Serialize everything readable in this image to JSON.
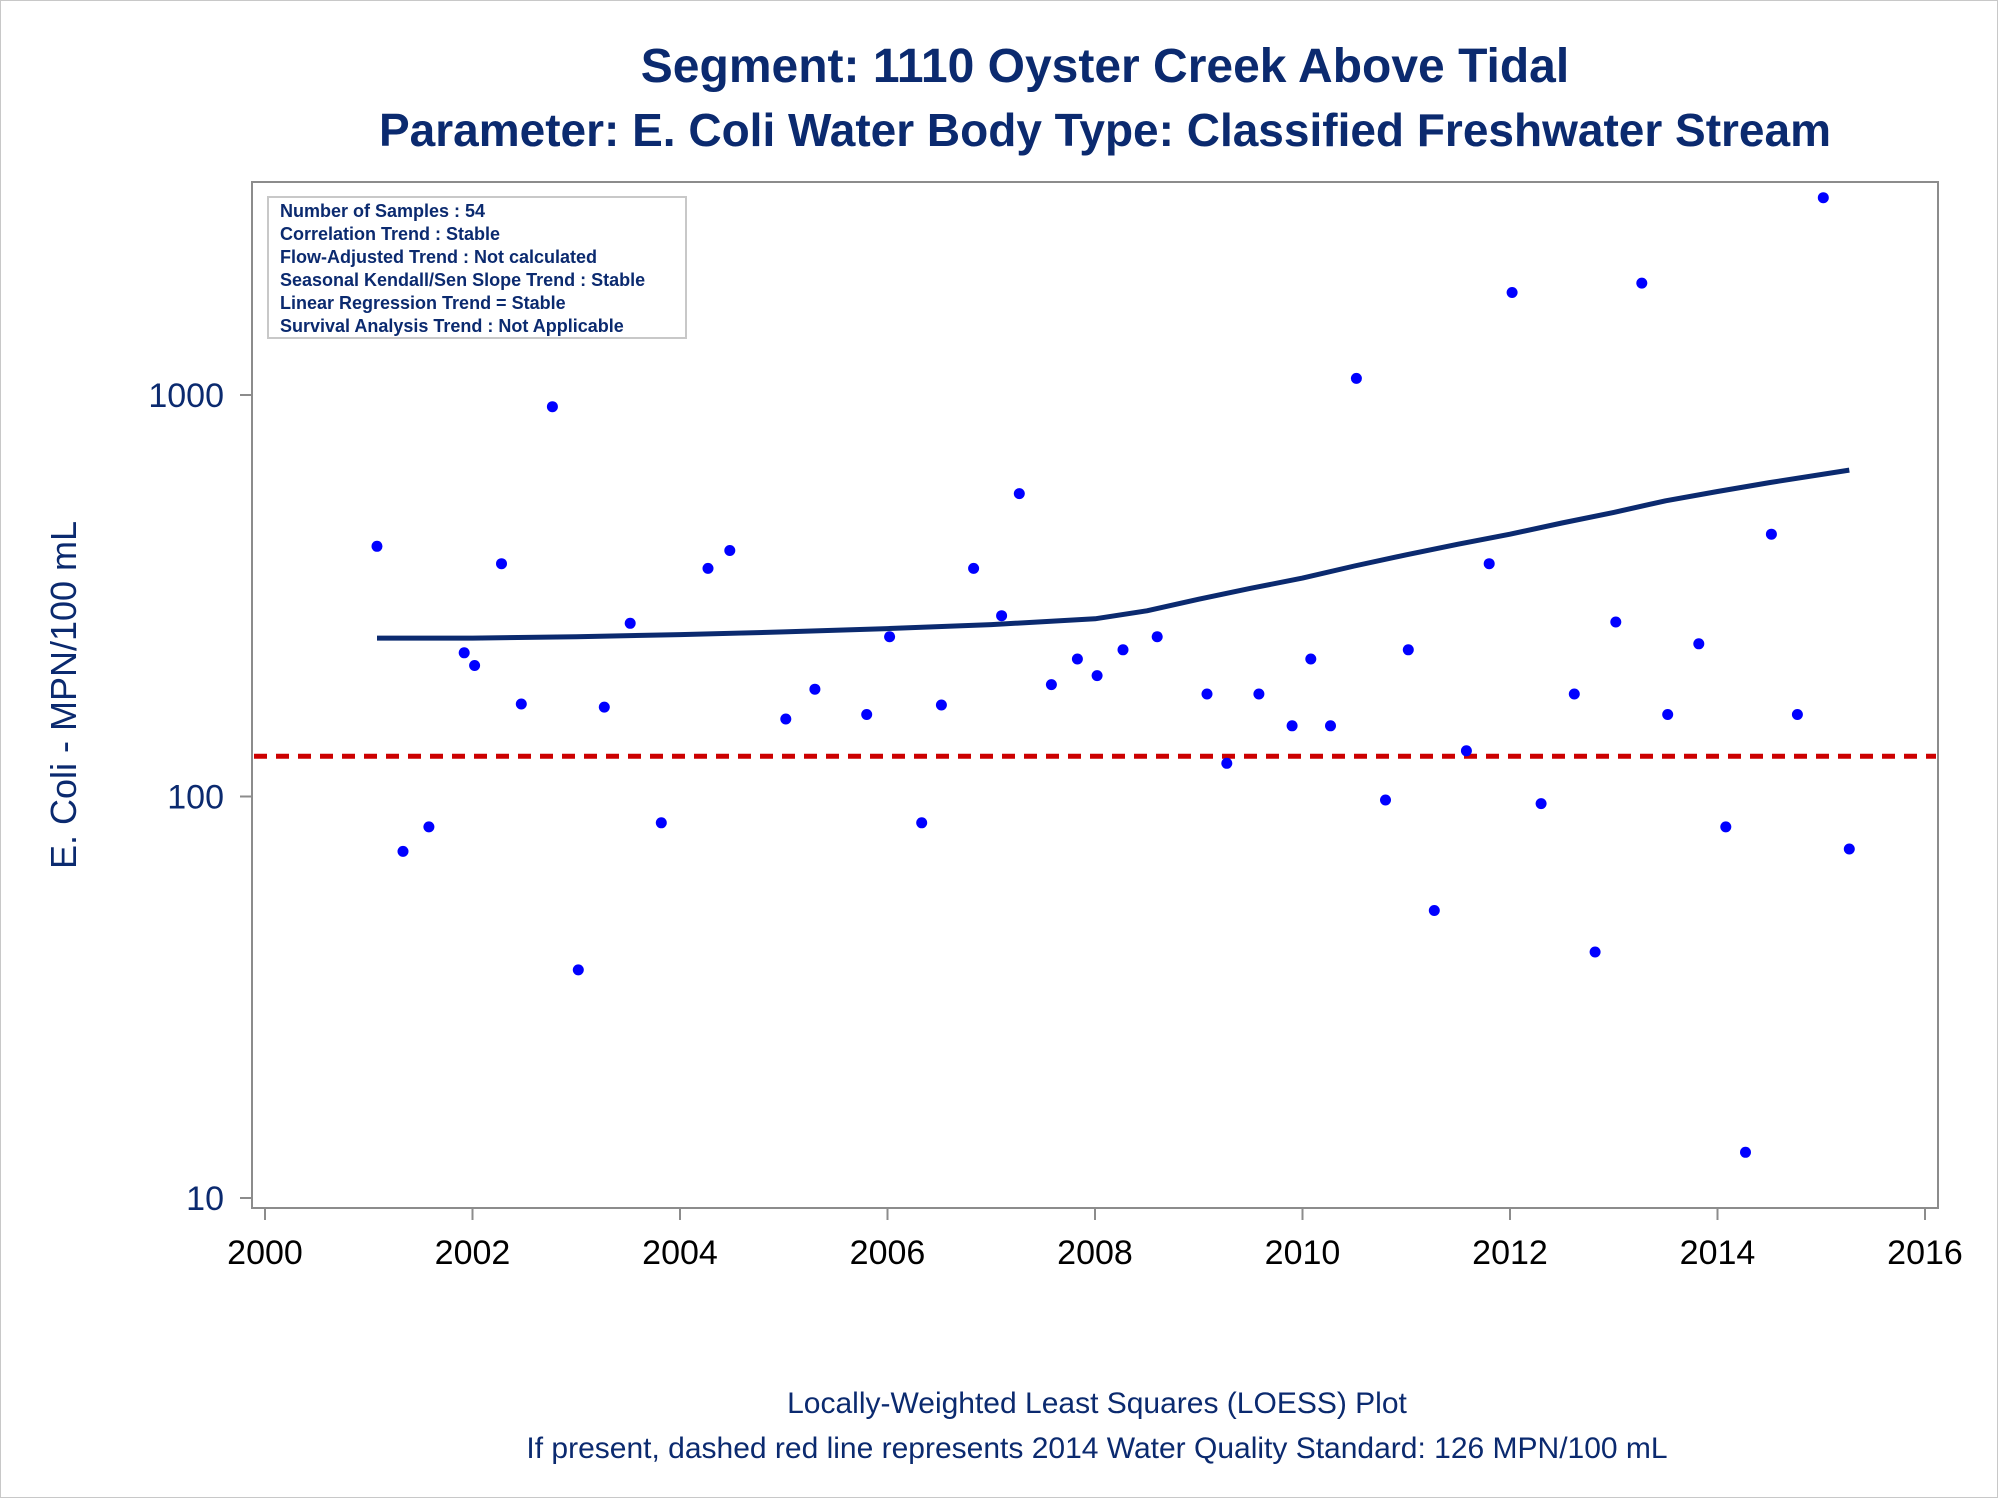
{
  "title": "Segment: 1110  Oyster Creek Above Tidal",
  "subtitle": "Parameter: E. Coli   Water Body Type: Classified Freshwater Stream",
  "stats_box": [
    "Number of Samples : 54",
    "Correlation Trend : Stable",
    "Flow-Adjusted Trend : Not calculated",
    "Seasonal Kendall/Sen Slope Trend : Stable",
    "Linear Regression Trend = Stable",
    "Survival Analysis Trend : Not Applicable"
  ],
  "footnotes": [
    "Locally-Weighted Least Squares (LOESS) Plot",
    "If present, dashed red line represents 2014 Water Quality Standard: 126 MPN/100 mL"
  ],
  "colors": {
    "text": "#0b2a6f",
    "points": "#0000ff",
    "loess": "#0b2a6f",
    "standard": "#cc0000",
    "axis": "#8c8c8c"
  },
  "chart_data": {
    "type": "scatter",
    "ylabel": "E. Coli - MPN/100 mL",
    "xlabel": "",
    "y_scale": "log",
    "xlim": [
      2000,
      2016
    ],
    "ylim": [
      10,
      3000
    ],
    "x_ticks": [
      "2000",
      "2002",
      "2004",
      "2006",
      "2008",
      "2010",
      "2012",
      "2014",
      "2016"
    ],
    "y_ticks": [
      "10",
      "100",
      "1000"
    ],
    "grid": false,
    "standard_line": {
      "value": 126,
      "style": "dashed"
    },
    "points": [
      {
        "x": 2001.08,
        "y": 420
      },
      {
        "x": 2001.33,
        "y": 73
      },
      {
        "x": 2001.58,
        "y": 84
      },
      {
        "x": 2001.92,
        "y": 228
      },
      {
        "x": 2002.02,
        "y": 212
      },
      {
        "x": 2002.28,
        "y": 380
      },
      {
        "x": 2002.47,
        "y": 170
      },
      {
        "x": 2002.77,
        "y": 935
      },
      {
        "x": 2003.02,
        "y": 37
      },
      {
        "x": 2003.27,
        "y": 167
      },
      {
        "x": 2003.52,
        "y": 270
      },
      {
        "x": 2003.82,
        "y": 86
      },
      {
        "x": 2004.27,
        "y": 370
      },
      {
        "x": 2004.48,
        "y": 410
      },
      {
        "x": 2005.02,
        "y": 156
      },
      {
        "x": 2005.3,
        "y": 185
      },
      {
        "x": 2005.8,
        "y": 160
      },
      {
        "x": 2006.02,
        "y": 250
      },
      {
        "x": 2006.33,
        "y": 86
      },
      {
        "x": 2006.52,
        "y": 169
      },
      {
        "x": 2006.83,
        "y": 370
      },
      {
        "x": 2007.1,
        "y": 282
      },
      {
        "x": 2007.27,
        "y": 568
      },
      {
        "x": 2007.58,
        "y": 190
      },
      {
        "x": 2007.83,
        "y": 220
      },
      {
        "x": 2008.02,
        "y": 200
      },
      {
        "x": 2008.27,
        "y": 232
      },
      {
        "x": 2008.6,
        "y": 250
      },
      {
        "x": 2009.08,
        "y": 180
      },
      {
        "x": 2009.27,
        "y": 121
      },
      {
        "x": 2009.58,
        "y": 180
      },
      {
        "x": 2009.9,
        "y": 150
      },
      {
        "x": 2010.08,
        "y": 220
      },
      {
        "x": 2010.27,
        "y": 150
      },
      {
        "x": 2010.52,
        "y": 1100
      },
      {
        "x": 2010.8,
        "y": 98
      },
      {
        "x": 2011.02,
        "y": 232
      },
      {
        "x": 2011.27,
        "y": 52
      },
      {
        "x": 2011.58,
        "y": 130
      },
      {
        "x": 2011.8,
        "y": 380
      },
      {
        "x": 2012.02,
        "y": 1800
      },
      {
        "x": 2012.3,
        "y": 96
      },
      {
        "x": 2012.62,
        "y": 180
      },
      {
        "x": 2012.82,
        "y": 41
      },
      {
        "x": 2013.02,
        "y": 272
      },
      {
        "x": 2013.27,
        "y": 1900
      },
      {
        "x": 2013.52,
        "y": 160
      },
      {
        "x": 2013.82,
        "y": 240
      },
      {
        "x": 2014.08,
        "y": 84
      },
      {
        "x": 2014.27,
        "y": 13
      },
      {
        "x": 2014.52,
        "y": 450
      },
      {
        "x": 2014.77,
        "y": 160
      },
      {
        "x": 2015.02,
        "y": 3100
      },
      {
        "x": 2015.27,
        "y": 74
      }
    ],
    "loess": [
      {
        "x": 2001.08,
        "y": 248
      },
      {
        "x": 2002.0,
        "y": 248
      },
      {
        "x": 2003.0,
        "y": 250
      },
      {
        "x": 2004.0,
        "y": 253
      },
      {
        "x": 2005.0,
        "y": 257
      },
      {
        "x": 2006.0,
        "y": 262
      },
      {
        "x": 2007.0,
        "y": 268
      },
      {
        "x": 2008.0,
        "y": 277
      },
      {
        "x": 2008.5,
        "y": 290
      },
      {
        "x": 2009.0,
        "y": 310
      },
      {
        "x": 2009.5,
        "y": 330
      },
      {
        "x": 2010.0,
        "y": 350
      },
      {
        "x": 2010.5,
        "y": 375
      },
      {
        "x": 2011.0,
        "y": 400
      },
      {
        "x": 2011.5,
        "y": 425
      },
      {
        "x": 2012.0,
        "y": 450
      },
      {
        "x": 2012.5,
        "y": 480
      },
      {
        "x": 2013.0,
        "y": 510
      },
      {
        "x": 2013.5,
        "y": 545
      },
      {
        "x": 2014.0,
        "y": 575
      },
      {
        "x": 2014.5,
        "y": 605
      },
      {
        "x": 2015.27,
        "y": 650
      }
    ]
  }
}
